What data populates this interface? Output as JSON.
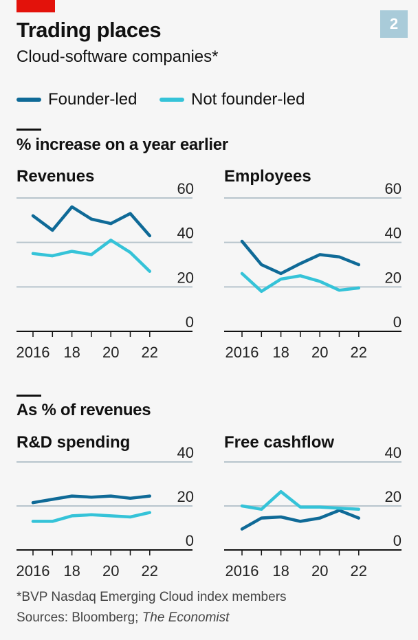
{
  "header": {
    "title": "Trading places",
    "subtitle": "Cloud-software companies*",
    "badge": "2"
  },
  "legend": [
    {
      "label": "Founder-led",
      "color": "#0f6a97"
    },
    {
      "label": "Not founder-led",
      "color": "#35c3d8"
    }
  ],
  "sections": [
    {
      "label": "% increase on a year earlier"
    },
    {
      "label": "As % of revenues"
    }
  ],
  "footer": {
    "footnote": "*BVP Nasdaq Emerging Cloud index members",
    "sources_prefix": "Sources: Bloomberg; ",
    "sources_italic": "The Economist"
  },
  "chart_data": [
    {
      "type": "line",
      "title": "Revenues",
      "x": [
        2016,
        2017,
        2018,
        2019,
        2020,
        2021,
        2022
      ],
      "x_tick_labels": [
        "2016",
        "18",
        "20",
        "22"
      ],
      "ylim": [
        0,
        60
      ],
      "y_ticks": [
        0,
        20,
        40,
        60
      ],
      "series": [
        {
          "name": "Founder-led",
          "values": [
            52,
            45.5,
            56,
            50.5,
            48.5,
            53,
            43
          ]
        },
        {
          "name": "Not founder-led",
          "values": [
            35,
            34,
            36,
            34.5,
            41,
            35.5,
            27
          ]
        }
      ]
    },
    {
      "type": "line",
      "title": "Employees",
      "x": [
        2016,
        2017,
        2018,
        2019,
        2020,
        2021,
        2022
      ],
      "x_tick_labels": [
        "2016",
        "18",
        "20",
        "22"
      ],
      "ylim": [
        0,
        60
      ],
      "y_ticks": [
        0,
        20,
        40,
        60
      ],
      "series": [
        {
          "name": "Founder-led",
          "values": [
            40.5,
            30,
            26,
            30.5,
            34.5,
            33.5,
            30
          ]
        },
        {
          "name": "Not founder-led",
          "values": [
            26,
            18,
            23.5,
            25,
            22.5,
            18.5,
            19.5
          ]
        }
      ]
    },
    {
      "type": "line",
      "title": "R&D spending",
      "x": [
        2016,
        2017,
        2018,
        2019,
        2020,
        2021,
        2022
      ],
      "x_tick_labels": [
        "2016",
        "18",
        "20",
        "22"
      ],
      "ylim": [
        0,
        40
      ],
      "y_ticks": [
        0,
        20,
        40
      ],
      "series": [
        {
          "name": "Founder-led",
          "values": [
            21.5,
            23,
            24.5,
            24,
            24.5,
            23.5,
            24.5
          ]
        },
        {
          "name": "Not founder-led",
          "values": [
            13,
            13,
            15.5,
            16,
            15.5,
            15,
            17
          ]
        }
      ]
    },
    {
      "type": "line",
      "title": "Free cashflow",
      "x": [
        2016,
        2017,
        2018,
        2019,
        2020,
        2021,
        2022
      ],
      "x_tick_labels": [
        "2016",
        "18",
        "20",
        "22"
      ],
      "ylim": [
        0,
        40
      ],
      "y_ticks": [
        0,
        20,
        40
      ],
      "series": [
        {
          "name": "Founder-led",
          "values": [
            9.5,
            14.5,
            15,
            13,
            14.5,
            18,
            14.5
          ]
        },
        {
          "name": "Not founder-led",
          "values": [
            20,
            18.5,
            26.5,
            19.5,
            19.5,
            19,
            18.5
          ]
        }
      ]
    }
  ]
}
